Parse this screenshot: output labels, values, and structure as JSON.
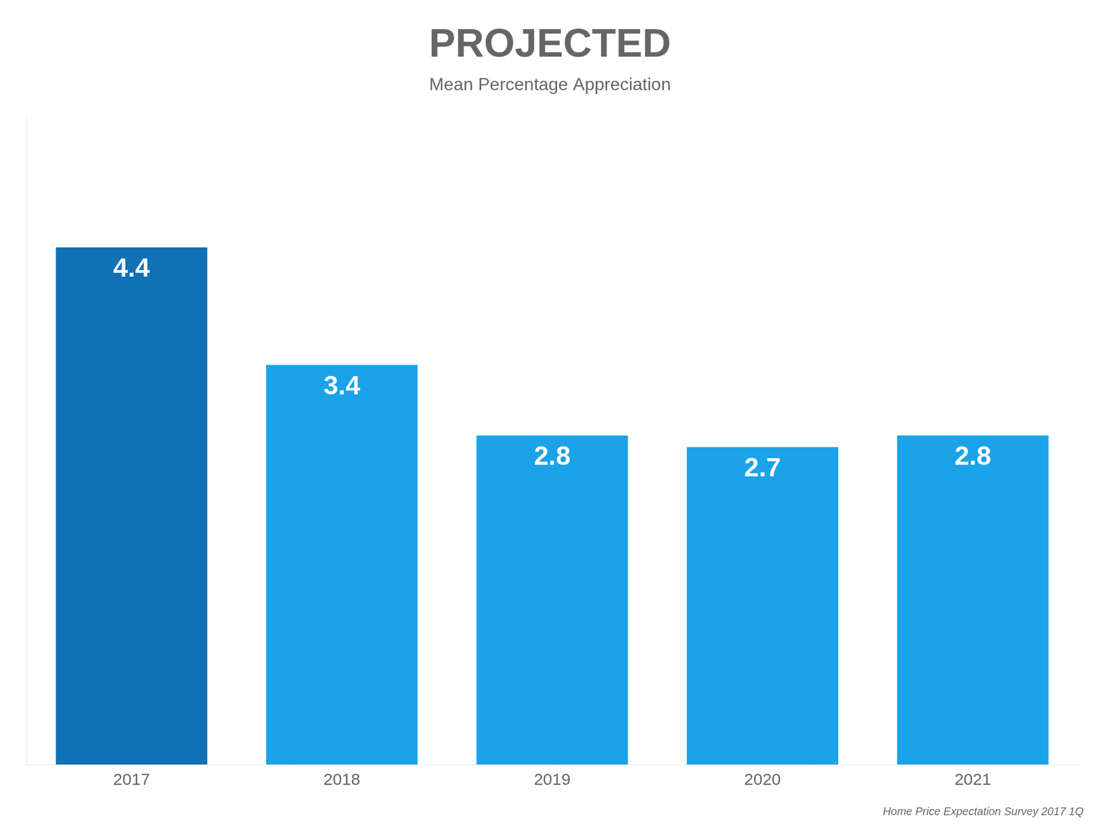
{
  "chart_data": {
    "type": "bar",
    "title": "PROJECTED",
    "subtitle": "Mean Percentage Appreciation",
    "source": "Home Price Expectation Survey 2017 1Q",
    "categories": [
      "2017",
      "2018",
      "2019",
      "2020",
      "2021"
    ],
    "values": [
      4.4,
      3.4,
      2.8,
      2.7,
      2.8
    ],
    "colors": [
      "#1171b6",
      "#1aa3e8",
      "#1aa3e8",
      "#1aa3e8",
      "#1aa3e8"
    ],
    "ylim": [
      0,
      5.5
    ],
    "grid": false,
    "data_labels": true,
    "tick_labels": "x"
  }
}
